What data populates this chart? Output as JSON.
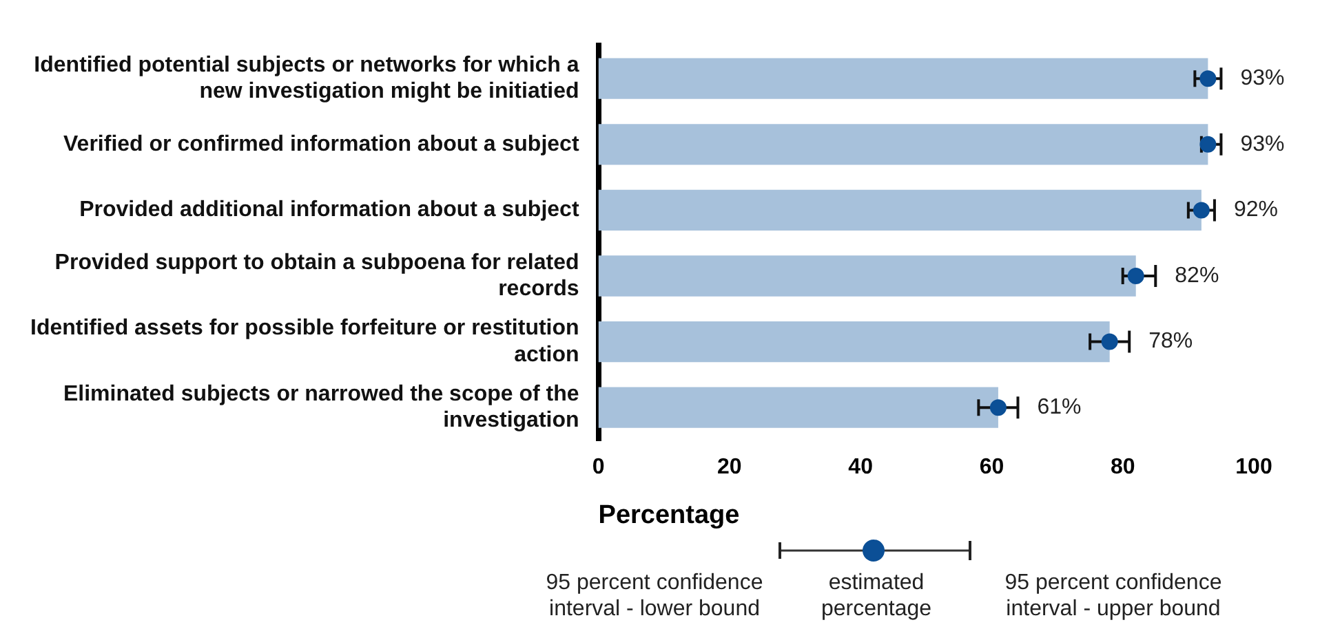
{
  "chart_data": {
    "type": "bar",
    "orientation": "horizontal",
    "xlabel": "Percentage",
    "categories": [
      "Identified potential subjects or networks for which a new investigation might be initiatied",
      "Verified or confirmed information about a subject",
      "Provided additional information about a subject",
      "Provided support to obtain a subpoena for related records",
      "Identified assets for possible forfeiture or restitution action",
      "Eliminated subjects or narrowed the scope of the investigation"
    ],
    "series": [
      {
        "color": "#a7c1db",
        "values": [
          93,
          93,
          92,
          82,
          78,
          61
        ]
      },
      {
        "type": "scatter",
        "color": "#0b4f96",
        "values": [
          93,
          93,
          92,
          82,
          78,
          61
        ],
        "errors": [
          [
            91,
            95
          ],
          [
            92,
            95
          ],
          [
            90,
            94
          ],
          [
            80,
            85
          ],
          [
            75,
            81
          ],
          [
            58,
            64
          ]
        ],
        "value_labels": [
          "93%",
          "93%",
          "92%",
          "82%",
          "78%",
          "61%"
        ]
      }
    ],
    "marker": "circle",
    "grid": false,
    "legend": false,
    "xlim": [
      0,
      100
    ],
    "xticks": [
      0,
      20,
      40,
      60,
      80,
      100
    ],
    "annotations": [
      "95 percent confidence interval - lower bound",
      "estimated percentage",
      "95 percent confidence interval - upper bound"
    ]
  }
}
